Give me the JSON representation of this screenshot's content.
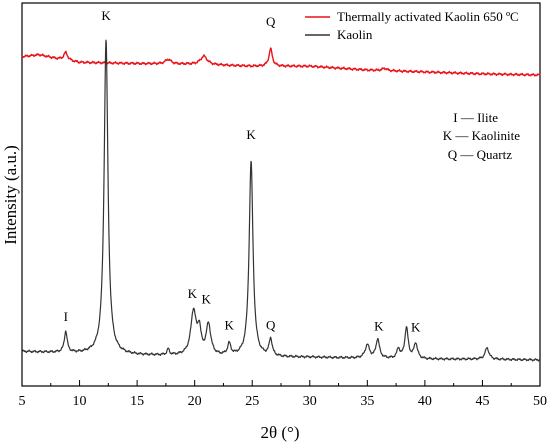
{
  "chart_data": {
    "type": "line",
    "xlabel": "2θ (°)",
    "ylabel": "Intensity (a.u.)",
    "xlim": [
      5,
      50
    ],
    "xticks": [
      "5",
      "10",
      "15",
      "20",
      "25",
      "30",
      "35",
      "40",
      "45",
      "50"
    ],
    "y_scale": "arbitrary units, no tick labels",
    "grid": false,
    "legend_position": "top-right",
    "series": [
      {
        "name": "Thermally activated Kaolin 650 ºC",
        "color": "#e8141a",
        "baseline": [
          [
            5,
            0.86
          ],
          [
            6.5,
            0.865
          ],
          [
            8,
            0.855
          ],
          [
            10,
            0.845
          ],
          [
            15,
            0.842
          ],
          [
            20,
            0.84
          ],
          [
            25,
            0.835
          ],
          [
            30,
            0.835
          ],
          [
            35,
            0.825
          ],
          [
            40,
            0.82
          ],
          [
            45,
            0.815
          ],
          [
            50,
            0.812
          ]
        ],
        "peaks": [
          {
            "x": 8.8,
            "h": 0.02,
            "w": 0.2
          },
          {
            "x": 17.7,
            "h": 0.012,
            "w": 0.3
          },
          {
            "x": 20.8,
            "h": 0.022,
            "w": 0.35
          },
          {
            "x": 26.6,
            "h": 0.045,
            "w": 0.18
          },
          {
            "x": 36.5,
            "h": 0.006,
            "w": 0.25
          }
        ]
      },
      {
        "name": "Kaolin",
        "color": "#333333",
        "baseline": [
          [
            5,
            0.09
          ],
          [
            10,
            0.085
          ],
          [
            15,
            0.08
          ],
          [
            20,
            0.078
          ],
          [
            25,
            0.075
          ],
          [
            30,
            0.075
          ],
          [
            35,
            0.072
          ],
          [
            40,
            0.07
          ],
          [
            45,
            0.07
          ],
          [
            50,
            0.068
          ]
        ],
        "peaks": [
          {
            "x": 8.8,
            "h": 0.055,
            "w": 0.15
          },
          {
            "x": 12.3,
            "h": 0.82,
            "w": 0.2
          },
          {
            "x": 17.7,
            "h": 0.015,
            "w": 0.12
          },
          {
            "x": 19.9,
            "h": 0.115,
            "w": 0.28
          },
          {
            "x": 20.4,
            "h": 0.06,
            "w": 0.18
          },
          {
            "x": 21.2,
            "h": 0.08,
            "w": 0.24
          },
          {
            "x": 23.0,
            "h": 0.03,
            "w": 0.17
          },
          {
            "x": 24.9,
            "h": 0.51,
            "w": 0.2
          },
          {
            "x": 26.6,
            "h": 0.045,
            "w": 0.16
          },
          {
            "x": 35.0,
            "h": 0.035,
            "w": 0.22
          },
          {
            "x": 35.9,
            "h": 0.05,
            "w": 0.18
          },
          {
            "x": 37.7,
            "h": 0.025,
            "w": 0.15
          },
          {
            "x": 38.4,
            "h": 0.08,
            "w": 0.18
          },
          {
            "x": 39.2,
            "h": 0.04,
            "w": 0.18
          },
          {
            "x": 45.4,
            "h": 0.03,
            "w": 0.2
          }
        ]
      }
    ],
    "annotations": [
      {
        "text": "Q",
        "x": 26.6,
        "y": 0.94
      },
      {
        "text": "K",
        "x": 12.3,
        "y": 0.955
      },
      {
        "text": "K",
        "x": 24.9,
        "y": 0.645
      },
      {
        "text": "I",
        "x": 8.8,
        "y": 0.17
      },
      {
        "text": "K",
        "x": 19.8,
        "y": 0.23
      },
      {
        "text": "K",
        "x": 21.0,
        "y": 0.215
      },
      {
        "text": "K",
        "x": 23.0,
        "y": 0.148
      },
      {
        "text": "Q",
        "x": 26.6,
        "y": 0.148
      },
      {
        "text": "K",
        "x": 36.0,
        "y": 0.145
      },
      {
        "text": "K",
        "x": 39.2,
        "y": 0.142
      }
    ],
    "phase_key": [
      "I — Ilite",
      "K — Kaolinite",
      "Q — Quartz"
    ]
  }
}
